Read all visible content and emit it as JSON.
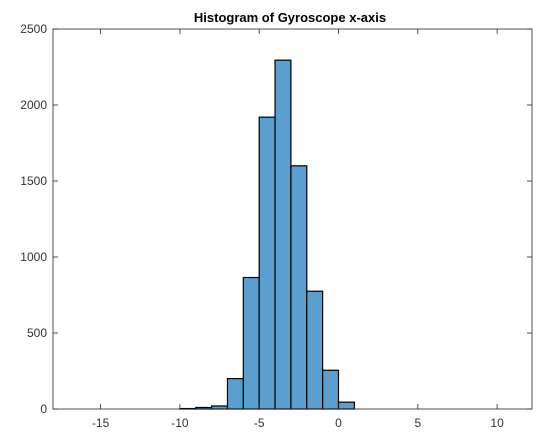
{
  "chart_data": {
    "type": "bar",
    "title": "Histogram of Gyroscope x-axis",
    "xlabel": "",
    "ylabel": "",
    "xlim": [
      -18,
      12.2
    ],
    "ylim": [
      0,
      2500
    ],
    "xticks": [
      -15,
      -10,
      -5,
      0,
      5,
      10
    ],
    "xtick_labels": [
      "-15",
      "-10",
      "-5",
      "0",
      "5",
      "10"
    ],
    "yticks": [
      0,
      500,
      1000,
      1500,
      2000,
      2500
    ],
    "ytick_labels": [
      "0",
      "500",
      "1000",
      "1500",
      "2000",
      "2500"
    ],
    "grid": false,
    "legend": "none",
    "bin_edges": [
      -10.0,
      -9.0,
      -8.0,
      -7.0,
      -6.0,
      -5.0,
      -4.0,
      -3.0,
      -2.0,
      -1.0,
      0.0,
      1.0
    ],
    "counts": [
      3,
      10,
      20,
      200,
      865,
      1920,
      2295,
      1600,
      775,
      255,
      45
    ],
    "bar_color": "#5a9fd0",
    "edge_color": "#000000",
    "axis_color": "#262626",
    "tick_label_color": "#333333"
  }
}
